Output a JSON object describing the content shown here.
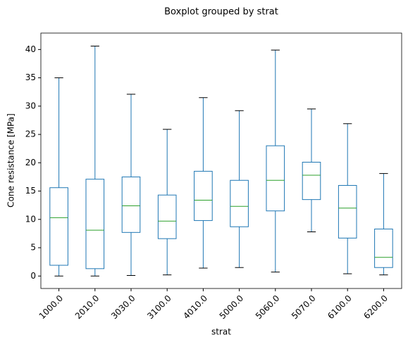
{
  "chart_data": {
    "type": "box",
    "title": "Boxplot grouped by strat",
    "x_label": "strat",
    "y_label": "Cone resistance [MPa]",
    "categories": [
      "1000.0",
      "2010.0",
      "3030.0",
      "3100.0",
      "4010.0",
      "5000.0",
      "5060.0",
      "5070.0",
      "6100.0",
      "6200.0"
    ],
    "min": [
      0,
      0,
      0.1,
      0.2,
      1.4,
      1.5,
      0.7,
      7.8,
      0.4,
      0.2
    ],
    "q1": [
      1.9,
      1.3,
      7.7,
      6.6,
      9.8,
      8.7,
      11.5,
      13.5,
      6.7,
      1.5
    ],
    "median": [
      10.3,
      8.1,
      12.4,
      9.7,
      13.4,
      12.3,
      16.9,
      17.8,
      12.0,
      3.3
    ],
    "q3": [
      15.6,
      17.1,
      17.5,
      14.3,
      18.5,
      16.9,
      23.0,
      20.1,
      16.0,
      8.3
    ],
    "max": [
      35,
      40.6,
      32.1,
      25.9,
      31.5,
      29.2,
      39.9,
      29.5,
      26.9,
      18.1
    ],
    "box_color": "#1f77b4",
    "median_color": "#2ca02c",
    "cap_color": "#000000",
    "ylim": [
      -2.2,
      42.9
    ],
    "yticks": [
      0,
      5,
      10,
      15,
      20,
      25,
      30,
      35,
      40
    ],
    "grid": false
  }
}
